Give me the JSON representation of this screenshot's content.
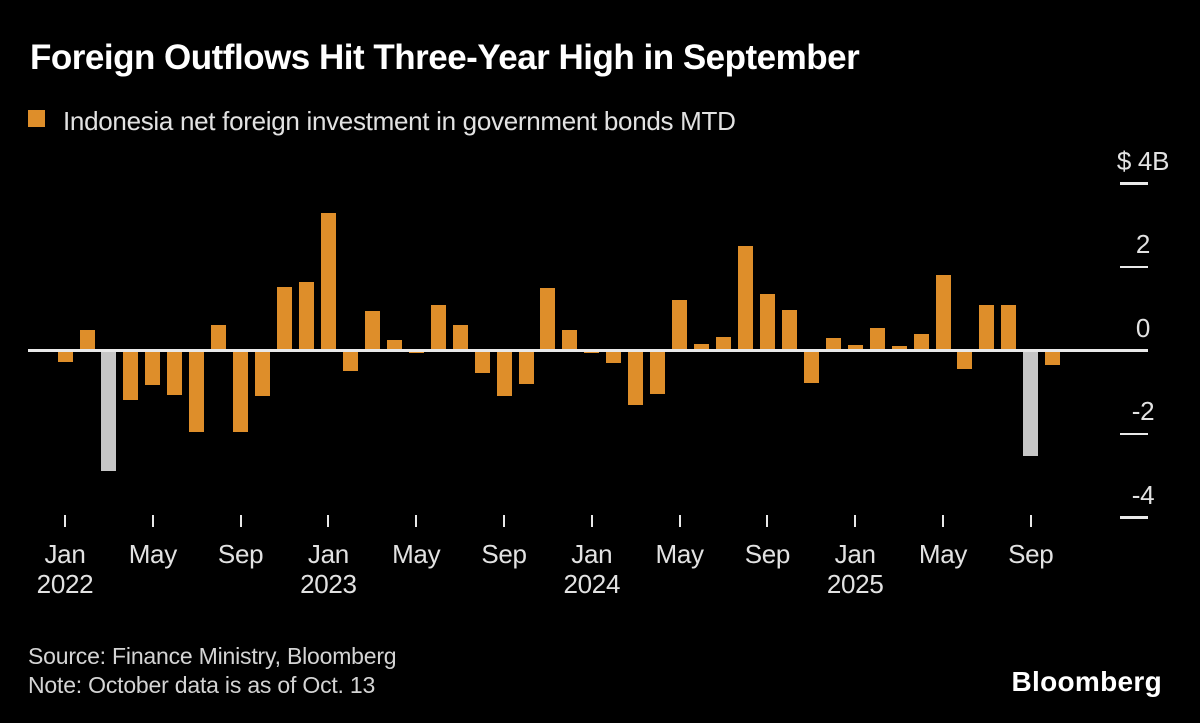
{
  "header": {
    "title": "Foreign Outflows Hit Three-Year High in September",
    "legend_label": "Indonesia net foreign investment in government bonds MTD"
  },
  "colors": {
    "background": "#000000",
    "bar": "#DE8E2A",
    "highlight_bar": "#C6C6C6",
    "title_text": "#FFFFFF",
    "axis_text": "#E2E2E2",
    "zero_line": "#E9E9E9",
    "tick_dash": "#E9E9E9",
    "footer_text": "#D4D4D4",
    "logo_text": "#FFFFFF"
  },
  "chart_data": {
    "type": "bar",
    "title": "Foreign Outflows Hit Three-Year High in September",
    "series_name": "Indonesia net foreign investment in government bonds MTD",
    "unit": "USD billions",
    "ylim": [
      -4,
      4
    ],
    "grid": "off",
    "legend_position": "top-left",
    "y_axis_side": "right",
    "y_ticks": [
      {
        "label": "$ 4B",
        "value": 4
      },
      {
        "label": "2",
        "value": 2
      },
      {
        "label": "0",
        "value": 0
      },
      {
        "label": "-2",
        "value": -2
      },
      {
        "label": "-4",
        "value": -4
      }
    ],
    "x_ticks": [
      {
        "month": "Jan",
        "year": "2022"
      },
      {
        "month": "May",
        "year": ""
      },
      {
        "month": "Sep",
        "year": ""
      },
      {
        "month": "Jan",
        "year": "2023"
      },
      {
        "month": "May",
        "year": ""
      },
      {
        "month": "Sep",
        "year": ""
      },
      {
        "month": "Jan",
        "year": "2024"
      },
      {
        "month": "May",
        "year": ""
      },
      {
        "month": "Sep",
        "year": ""
      },
      {
        "month": "Jan",
        "year": "2025"
      },
      {
        "month": "May",
        "year": ""
      },
      {
        "month": "Sep",
        "year": ""
      }
    ],
    "highlighted_categories": [
      "Mar 2022",
      "Sep 2025"
    ],
    "bars": [
      {
        "label": "Jan 2022",
        "value": -0.27,
        "highlight": false
      },
      {
        "label": "Feb 2022",
        "value": 0.5,
        "highlight": false
      },
      {
        "label": "Mar 2022",
        "value": -2.88,
        "highlight": true
      },
      {
        "label": "Apr 2022",
        "value": -1.18,
        "highlight": false
      },
      {
        "label": "May 2022",
        "value": -0.83,
        "highlight": false
      },
      {
        "label": "Jun 2022",
        "value": -1.07,
        "highlight": false
      },
      {
        "label": "Jul 2022",
        "value": -1.94,
        "highlight": false
      },
      {
        "label": "Aug 2022",
        "value": 0.6,
        "highlight": false
      },
      {
        "label": "Sep 2022",
        "value": -1.96,
        "highlight": false
      },
      {
        "label": "Oct 2022",
        "value": -1.1,
        "highlight": false
      },
      {
        "label": "Nov 2022",
        "value": 1.52,
        "highlight": false
      },
      {
        "label": "Dec 2022",
        "value": 1.64,
        "highlight": false
      },
      {
        "label": "Jan 2023",
        "value": 3.29,
        "highlight": false
      },
      {
        "label": "Feb 2023",
        "value": -0.49,
        "highlight": false
      },
      {
        "label": "Mar 2023",
        "value": 0.95,
        "highlight": false
      },
      {
        "label": "Apr 2023",
        "value": 0.26,
        "highlight": false
      },
      {
        "label": "May 2023",
        "value": -0.07,
        "highlight": false
      },
      {
        "label": "Jun 2023",
        "value": 1.1,
        "highlight": false
      },
      {
        "label": "Jul 2023",
        "value": 0.62,
        "highlight": false
      },
      {
        "label": "Aug 2023",
        "value": -0.53,
        "highlight": false
      },
      {
        "label": "Sep 2023",
        "value": -1.08,
        "highlight": false
      },
      {
        "label": "Oct 2023",
        "value": -0.81,
        "highlight": false
      },
      {
        "label": "Nov 2023",
        "value": 1.49,
        "highlight": false
      },
      {
        "label": "Dec 2023",
        "value": 0.5,
        "highlight": false
      },
      {
        "label": "Jan 2024",
        "value": -0.07,
        "highlight": false
      },
      {
        "label": "Feb 2024",
        "value": -0.29,
        "highlight": false
      },
      {
        "label": "Mar 2024",
        "value": -1.31,
        "highlight": false
      },
      {
        "label": "Apr 2024",
        "value": -1.05,
        "highlight": false
      },
      {
        "label": "May 2024",
        "value": 1.2,
        "highlight": false
      },
      {
        "label": "Jun 2024",
        "value": 0.15,
        "highlight": false
      },
      {
        "label": "Jul 2024",
        "value": 0.33,
        "highlight": false
      },
      {
        "label": "Aug 2024",
        "value": 2.5,
        "highlight": false
      },
      {
        "label": "Sep 2024",
        "value": 1.36,
        "highlight": false
      },
      {
        "label": "Oct 2024",
        "value": 0.97,
        "highlight": false
      },
      {
        "label": "Nov 2024",
        "value": -0.78,
        "highlight": false
      },
      {
        "label": "Dec 2024",
        "value": 0.29,
        "highlight": false
      },
      {
        "label": "Jan 2025",
        "value": 0.13,
        "highlight": false
      },
      {
        "label": "Feb 2025",
        "value": 0.55,
        "highlight": false
      },
      {
        "label": "Mar 2025",
        "value": 0.11,
        "highlight": false
      },
      {
        "label": "Apr 2025",
        "value": 0.39,
        "highlight": false
      },
      {
        "label": "May 2025",
        "value": 1.81,
        "highlight": false
      },
      {
        "label": "Jun 2025",
        "value": -0.43,
        "highlight": false
      },
      {
        "label": "Jul 2025",
        "value": 1.1,
        "highlight": false
      },
      {
        "label": "Aug 2025",
        "value": 1.1,
        "highlight": false
      },
      {
        "label": "Sep 2025",
        "value": -2.53,
        "highlight": true
      },
      {
        "label": "Oct 2025",
        "value": -0.35,
        "highlight": false
      }
    ]
  },
  "footer": {
    "source": "Source: Finance Ministry, Bloomberg",
    "note": "Note: October data is as of Oct. 13",
    "logo": "Bloomberg"
  }
}
